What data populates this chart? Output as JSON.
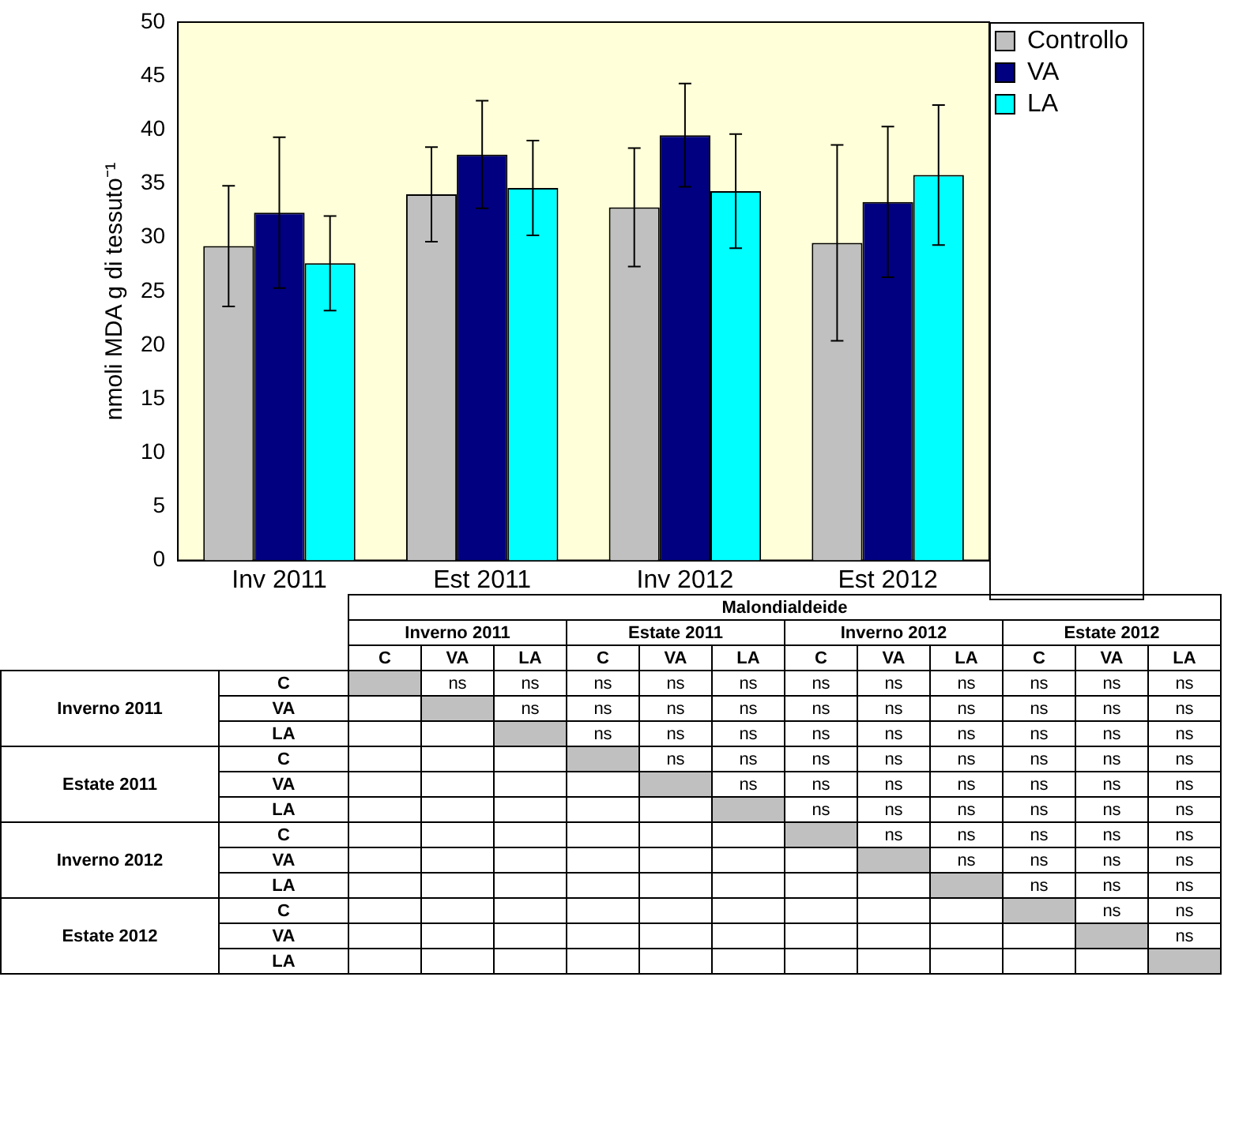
{
  "chart_data": [
    {
      "type": "bar",
      "ylabel": "nmoli MDA g di tessuto⁻¹",
      "categories": [
        "Inv 2011",
        "Est 2011",
        "Inv 2012",
        "Est 2012"
      ],
      "series": [
        {
          "name": "Controllo",
          "color": "#c0c0c0",
          "values": [
            29.2,
            34,
            32.8,
            29.5
          ],
          "errors": [
            5.6,
            4.4,
            5.5,
            9.1
          ]
        },
        {
          "name": "VA",
          "color": "#000080",
          "values": [
            32.3,
            37.7,
            39.5,
            33.3
          ],
          "errors": [
            7,
            5,
            4.8,
            7
          ]
        },
        {
          "name": "LA",
          "color": "#00ffff",
          "values": [
            27.6,
            34.6,
            34.3,
            35.8
          ],
          "errors": [
            4.4,
            4.4,
            5.3,
            6.5
          ]
        }
      ],
      "ylim": [
        0,
        50
      ],
      "yticks": [
        0,
        5,
        10,
        15,
        20,
        25,
        30,
        35,
        40,
        45,
        50
      ],
      "grid": false,
      "legend": "top right"
    },
    {
      "type": "heatmap",
      "title": "Malondialdeide",
      "annotations": [
        "Inverno 2011",
        "Estate 2011",
        "Inverno 2012",
        "Estate 2012"
      ],
      "categories": [
        "C",
        "VA",
        "LA",
        "C",
        "VA",
        "LA",
        "C",
        "VA",
        "LA",
        "C",
        "VA",
        "LA"
      ],
      "y_categories": [
        "C",
        "VA",
        "LA",
        "C",
        "VA",
        "LA",
        "C",
        "VA",
        "LA",
        "C",
        "VA",
        "LA"
      ],
      "cells": [
        [
          null,
          null,
          null,
          null,
          null,
          null,
          null,
          null,
          null,
          null,
          null,
          null
        ],
        [
          null,
          null,
          null,
          null,
          null,
          null,
          null,
          null,
          null,
          null,
          null,
          null
        ],
        [
          null,
          null,
          null,
          null,
          null,
          null,
          null,
          null,
          null,
          null,
          null,
          null
        ],
        [
          null,
          null,
          null,
          null,
          null,
          null,
          null,
          null,
          null,
          null,
          null,
          null
        ],
        [
          null,
          null,
          null,
          null,
          null,
          null,
          null,
          null,
          null,
          null,
          null,
          null
        ],
        [
          null,
          null,
          null,
          null,
          null,
          null,
          null,
          null,
          null,
          null,
          null,
          null
        ],
        [
          null,
          null,
          null,
          null,
          null,
          null,
          null,
          null,
          null,
          null,
          null,
          null
        ],
        [
          null,
          null,
          null,
          null,
          null,
          null,
          null,
          null,
          null,
          null,
          null,
          null
        ],
        [
          null,
          null,
          null,
          null,
          null,
          null,
          null,
          null,
          null,
          null,
          null,
          null
        ],
        [
          null,
          null,
          null,
          null,
          null,
          null,
          null,
          null,
          null,
          null,
          null,
          null
        ],
        [
          null,
          null,
          null,
          null,
          null,
          null,
          null,
          null,
          null,
          null,
          null,
          null
        ],
        [
          null,
          null,
          null,
          null,
          null,
          null,
          null,
          null,
          null,
          null,
          null,
          null
        ]
      ],
      "cell_labels": [
        [
          null,
          "ns",
          "ns",
          "ns",
          "ns",
          "ns",
          "ns",
          "ns",
          "ns",
          "ns",
          "ns",
          "ns"
        ],
        [
          null,
          null,
          "ns",
          "ns",
          "ns",
          "ns",
          "ns",
          "ns",
          "ns",
          "ns",
          "ns",
          "ns"
        ],
        [
          null,
          null,
          null,
          "ns",
          "ns",
          "ns",
          "ns",
          "ns",
          "ns",
          "ns",
          "ns",
          "ns"
        ],
        [
          null,
          null,
          null,
          null,
          "ns",
          "ns",
          "ns",
          "ns",
          "ns",
          "ns",
          "ns",
          "ns"
        ],
        [
          null,
          null,
          null,
          null,
          null,
          "ns",
          "ns",
          "ns",
          "ns",
          "ns",
          "ns",
          "ns"
        ],
        [
          null,
          null,
          null,
          null,
          null,
          null,
          "ns",
          "ns",
          "ns",
          "ns",
          "ns",
          "ns"
        ],
        [
          null,
          null,
          null,
          null,
          null,
          null,
          null,
          "ns",
          "ns",
          "ns",
          "ns",
          "ns"
        ],
        [
          null,
          null,
          null,
          null,
          null,
          null,
          null,
          null,
          "ns",
          "ns",
          "ns",
          "ns"
        ],
        [
          null,
          null,
          null,
          null,
          null,
          null,
          null,
          null,
          null,
          "ns",
          "ns",
          "ns"
        ],
        [
          null,
          null,
          null,
          null,
          null,
          null,
          null,
          null,
          null,
          null,
          "ns",
          "ns"
        ],
        [
          null,
          null,
          null,
          null,
          null,
          null,
          null,
          null,
          null,
          null,
          null,
          "ns"
        ],
        [
          null,
          null,
          null,
          null,
          null,
          null,
          null,
          null,
          null,
          null,
          null,
          null
        ]
      ]
    }
  ]
}
